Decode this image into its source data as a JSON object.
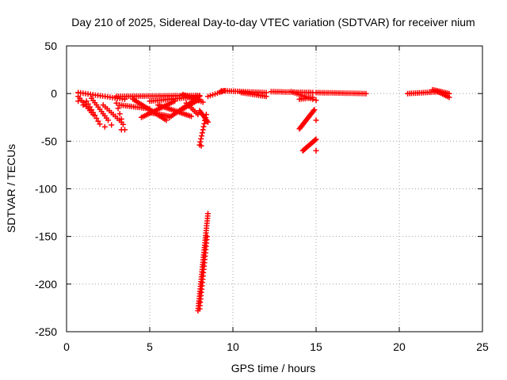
{
  "chart_data": {
    "type": "scatter",
    "title": "Day 210 of 2025, Sidereal Day-to-day VTEC variation (SDTVAR) for receiver nium",
    "xlabel": "GPS time / hours",
    "ylabel": "SDTVAR / TECUs",
    "xlim": [
      0,
      25
    ],
    "ylim": [
      -250,
      50
    ],
    "xticks": [
      0,
      5,
      10,
      15,
      20,
      25
    ],
    "yticks": [
      50,
      0,
      -50,
      -100,
      -150,
      -200,
      -250
    ],
    "marker": "+",
    "marker_color": "#ff0000",
    "grid": true,
    "segments": [
      {
        "from": [
          0.7,
          -3
        ],
        "to": [
          1.6,
          -22
        ],
        "step": 0.1
      },
      {
        "from": [
          1.2,
          -8
        ],
        "to": [
          2.0,
          -32
        ],
        "step": 0.1
      },
      {
        "from": [
          1.5,
          -5
        ],
        "to": [
          2.5,
          -28
        ],
        "step": 0.1
      },
      {
        "from": [
          0.7,
          1
        ],
        "to": [
          3.5,
          -6
        ],
        "step": 0.15
      },
      {
        "from": [
          2.2,
          -12
        ],
        "to": [
          3.3,
          -30
        ],
        "step": 0.12
      },
      {
        "from": [
          3.0,
          -10
        ],
        "to": [
          3.5,
          -38
        ],
        "step": 0.1
      },
      {
        "from": [
          3.0,
          -3
        ],
        "to": [
          8.0,
          -2
        ],
        "step": 0.12
      },
      {
        "from": [
          3.2,
          -12
        ],
        "to": [
          5.0,
          -16
        ],
        "step": 0.12
      },
      {
        "from": [
          4.0,
          -6
        ],
        "to": [
          6.0,
          -28
        ],
        "step": 0.1
      },
      {
        "from": [
          4.5,
          -25
        ],
        "to": [
          6.5,
          -8
        ],
        "step": 0.1
      },
      {
        "from": [
          5.0,
          -20
        ],
        "to": [
          6.2,
          -24
        ],
        "step": 0.1
      },
      {
        "from": [
          5.0,
          -8
        ],
        "to": [
          8.0,
          -3
        ],
        "step": 0.12
      },
      {
        "from": [
          5.5,
          -12
        ],
        "to": [
          7.5,
          -24
        ],
        "step": 0.1
      },
      {
        "from": [
          6.2,
          -25
        ],
        "to": [
          8.0,
          -3
        ],
        "step": 0.1
      },
      {
        "from": [
          6.8,
          -18
        ],
        "to": [
          8.0,
          -6
        ],
        "step": 0.1
      },
      {
        "from": [
          7.0,
          -1
        ],
        "to": [
          8.2,
          -9
        ],
        "step": 0.12
      },
      {
        "from": [
          7.2,
          -10
        ],
        "to": [
          7.9,
          -22
        ],
        "step": 0.1
      },
      {
        "from": [
          8.0,
          -18
        ],
        "to": [
          8.5,
          -30
        ],
        "step": 0.06
      },
      {
        "from": [
          8.0,
          -54
        ],
        "to": [
          8.4,
          -22
        ],
        "step": 0.04
      },
      {
        "from": [
          7.9,
          -228
        ],
        "to": [
          8.5,
          -126
        ],
        "step": 0.015
      },
      {
        "from": [
          8.0,
          -226
        ],
        "to": [
          8.45,
          -150
        ],
        "step": 0.02
      },
      {
        "from": [
          8.5,
          -3
        ],
        "to": [
          9.5,
          3
        ],
        "step": 0.15
      },
      {
        "from": [
          9.3,
          3
        ],
        "to": [
          12.0,
          1
        ],
        "step": 0.12
      },
      {
        "from": [
          10.5,
          1
        ],
        "to": [
          12.0,
          -3
        ],
        "step": 0.12
      },
      {
        "from": [
          12.3,
          2
        ],
        "to": [
          14.8,
          1
        ],
        "step": 0.12
      },
      {
        "from": [
          13.5,
          2
        ],
        "to": [
          14.8,
          -6
        ],
        "step": 0.12
      },
      {
        "from": [
          14.0,
          -6
        ],
        "to": [
          14.8,
          -4
        ],
        "step": 0.12
      },
      {
        "from": [
          14.0,
          -37
        ],
        "to": [
          14.9,
          -17
        ],
        "step": 0.05
      },
      {
        "from": [
          14.2,
          -60
        ],
        "to": [
          15.0,
          -48
        ],
        "step": 0.05
      },
      {
        "from": [
          15.0,
          1
        ],
        "to": [
          18.0,
          0
        ],
        "step": 0.12
      },
      {
        "from": [
          20.5,
          0
        ],
        "to": [
          22.5,
          2
        ],
        "step": 0.12
      },
      {
        "from": [
          22.0,
          4
        ],
        "to": [
          23.0,
          0
        ],
        "step": 0.1
      },
      {
        "from": [
          22.3,
          2
        ],
        "to": [
          23.0,
          -4
        ],
        "step": 0.1
      }
    ],
    "points": [
      [
        0.7,
        1
      ],
      [
        0.7,
        -8
      ],
      [
        1.0,
        -12
      ],
      [
        15.0,
        -7
      ],
      [
        15.0,
        -28
      ],
      [
        15.0,
        -60
      ],
      [
        3.3,
        -38
      ],
      [
        2.7,
        -33
      ],
      [
        2.3,
        -35
      ],
      [
        8.1,
        -55
      ],
      [
        9.3,
        2
      ]
    ]
  }
}
